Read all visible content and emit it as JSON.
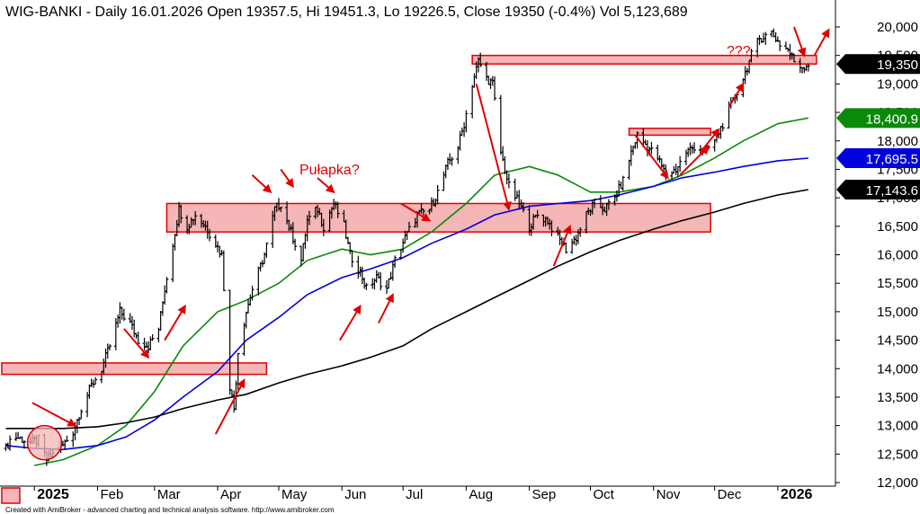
{
  "header": {
    "title": "WIG-BANKI - Daily 16.01.2026 Open 19357.5, Hi 19451.3, Lo 19226.5, Close 19350 (-0.4%) Vol 5,123,689"
  },
  "credit": "Created with AmiBroker - advanced charting and technical analysis software. http://www.amibroker.com",
  "annotations": {
    "trap_label": "Pułapka?",
    "question_label": "???"
  },
  "colors": {
    "price": "#000000",
    "zone_fill": "#f4b6b6",
    "zone_border": "#e00000",
    "arrow": "#e00000",
    "ma_green": "#0a8a0a",
    "ma_blue": "#0000dd",
    "ma_black": "#000000",
    "background": "#ffffff"
  },
  "chart_data": {
    "type": "line",
    "subtype": "ohlc-bars",
    "title": "WIG-BANKI - Daily 16.01.2026 Open 19357.5, Hi 19451.3, Lo 19226.5, Close 19350 (-0.4%) Vol 5,123,689",
    "ylim": [
      12000,
      20000
    ],
    "y_ticks": [
      12000,
      12500,
      13000,
      13500,
      14000,
      14500,
      15000,
      15500,
      16000,
      16500,
      17000,
      17500,
      18000,
      18500,
      19000,
      19500,
      20000
    ],
    "y_tick_labels": [
      "12,000",
      "12,500",
      "13,000",
      "13,500",
      "14,000",
      "14,500",
      "15,000",
      "15,500",
      "16,000",
      "16,500",
      "17,000",
      "17,500",
      "18,000",
      "18,500",
      "19,000",
      "19,500",
      "20,000"
    ],
    "grid": false,
    "x_labels": [
      {
        "label": "2025",
        "bold": true,
        "date": "2025-01-01"
      },
      {
        "label": "Feb",
        "date": "2025-02-01"
      },
      {
        "label": "Mar",
        "date": "2025-03-01"
      },
      {
        "label": "Apr",
        "date": "2025-04-01"
      },
      {
        "label": "May",
        "date": "2025-05-01"
      },
      {
        "label": "Jun",
        "date": "2025-06-01"
      },
      {
        "label": "Jul",
        "date": "2025-07-01"
      },
      {
        "label": "Aug",
        "date": "2025-08-01"
      },
      {
        "label": "Sep",
        "date": "2025-09-01"
      },
      {
        "label": "Oct",
        "date": "2025-10-01"
      },
      {
        "label": "Nov",
        "date": "2025-11-01"
      },
      {
        "label": "Dec",
        "date": "2025-12-01"
      },
      {
        "label": "2026",
        "bold": true,
        "date": "2026-01-01"
      }
    ],
    "last_values": [
      {
        "label": "19,350",
        "value": 19350,
        "series": "close",
        "bg": "#000000",
        "fg": "#ffffff"
      },
      {
        "label": "18,400.9",
        "value": 18400.9,
        "series": "ma_green",
        "bg": "#0a8a0a",
        "fg": "#ffffff"
      },
      {
        "label": "17,695.5",
        "value": 17695.5,
        "series": "ma_blue",
        "bg": "#0000dd",
        "fg": "#ffffff"
      },
      {
        "label": "17,143.6",
        "value": 17143.6,
        "series": "ma_black",
        "bg": "#000000",
        "fg": "#ffffff"
      }
    ],
    "price_anchors": [
      [
        "2024-12-18",
        12600
      ],
      [
        "2024-12-20",
        12750
      ],
      [
        "2024-12-23",
        12800
      ],
      [
        "2024-12-30",
        12700
      ],
      [
        "2025-01-03",
        12750
      ],
      [
        "2025-01-07",
        12400
      ],
      [
        "2025-01-10",
        12500
      ],
      [
        "2025-01-15",
        12650
      ],
      [
        "2025-01-20",
        12900
      ],
      [
        "2025-01-24",
        13300
      ],
      [
        "2025-01-29",
        13700
      ],
      [
        "2025-02-03",
        14000
      ],
      [
        "2025-02-07",
        14400
      ],
      [
        "2025-02-12",
        15000
      ],
      [
        "2025-02-17",
        14800
      ],
      [
        "2025-02-21",
        14500
      ],
      [
        "2025-02-26",
        14400
      ],
      [
        "2025-03-03",
        14700
      ],
      [
        "2025-03-06",
        15400
      ],
      [
        "2025-03-10",
        16200
      ],
      [
        "2025-03-13",
        16800
      ],
      [
        "2025-03-17",
        16500
      ],
      [
        "2025-03-21",
        16700
      ],
      [
        "2025-03-26",
        16500
      ],
      [
        "2025-03-31",
        16200
      ],
      [
        "2025-04-03",
        16000
      ],
      [
        "2025-04-07",
        13700
      ],
      [
        "2025-04-09",
        13300
      ],
      [
        "2025-04-11",
        14300
      ],
      [
        "2025-04-15",
        15000
      ],
      [
        "2025-04-18",
        15400
      ],
      [
        "2025-04-24",
        16000
      ],
      [
        "2025-04-29",
        16800
      ],
      [
        "2025-05-02",
        16900
      ],
      [
        "2025-05-07",
        16400
      ],
      [
        "2025-05-12",
        15900
      ],
      [
        "2025-05-15",
        16600
      ],
      [
        "2025-05-20",
        16800
      ],
      [
        "2025-05-23",
        16500
      ],
      [
        "2025-05-28",
        16900
      ],
      [
        "2025-06-02",
        16500
      ],
      [
        "2025-06-05",
        16000
      ],
      [
        "2025-06-10",
        15700
      ],
      [
        "2025-06-13",
        15400
      ],
      [
        "2025-06-18",
        15600
      ],
      [
        "2025-06-23",
        15400
      ],
      [
        "2025-06-27",
        15900
      ],
      [
        "2025-07-02",
        16300
      ],
      [
        "2025-07-08",
        16700
      ],
      [
        "2025-07-14",
        16800
      ],
      [
        "2025-07-18",
        17100
      ],
      [
        "2025-07-23",
        17600
      ],
      [
        "2025-07-28",
        17900
      ],
      [
        "2025-07-31",
        18300
      ],
      [
        "2025-08-04",
        19000
      ],
      [
        "2025-08-07",
        19400
      ],
      [
        "2025-08-11",
        19100
      ],
      [
        "2025-08-14",
        19000
      ],
      [
        "2025-08-18",
        17800
      ],
      [
        "2025-08-22",
        17200
      ],
      [
        "2025-08-27",
        16900
      ],
      [
        "2025-09-01",
        16500
      ],
      [
        "2025-09-05",
        16700
      ],
      [
        "2025-09-10",
        16600
      ],
      [
        "2025-09-15",
        16300
      ],
      [
        "2025-09-19",
        16100
      ],
      [
        "2025-09-24",
        16300
      ],
      [
        "2025-09-29",
        16700
      ],
      [
        "2025-10-03",
        16900
      ],
      [
        "2025-10-08",
        16800
      ],
      [
        "2025-10-13",
        17000
      ],
      [
        "2025-10-17",
        17300
      ],
      [
        "2025-10-21",
        17800
      ],
      [
        "2025-10-24",
        18100
      ],
      [
        "2025-10-29",
        17900
      ],
      [
        "2025-11-03",
        17700
      ],
      [
        "2025-11-07",
        17400
      ],
      [
        "2025-11-12",
        17500
      ],
      [
        "2025-11-17",
        17800
      ],
      [
        "2025-11-21",
        17900
      ],
      [
        "2025-11-26",
        17800
      ],
      [
        "2025-12-01",
        18000
      ],
      [
        "2025-12-05",
        18300
      ],
      [
        "2025-12-10",
        18700
      ],
      [
        "2025-12-15",
        19100
      ],
      [
        "2025-12-19",
        19500
      ],
      [
        "2025-12-23",
        19800
      ],
      [
        "2025-12-29",
        19900
      ],
      [
        "2026-01-02",
        19700
      ],
      [
        "2026-01-06",
        19600
      ],
      [
        "2026-01-09",
        19400
      ],
      [
        "2026-01-13",
        19300
      ],
      [
        "2026-01-16",
        19350
      ]
    ],
    "moving_averages": [
      {
        "name": "ma_green",
        "color": "#0a8a0a",
        "points": [
          [
            "2025-01-01",
            12300
          ],
          [
            "2025-01-15",
            12400
          ],
          [
            "2025-02-01",
            12650
          ],
          [
            "2025-02-15",
            13000
          ],
          [
            "2025-03-01",
            13600
          ],
          [
            "2025-03-15",
            14400
          ],
          [
            "2025-04-01",
            15000
          ],
          [
            "2025-04-15",
            15200
          ],
          [
            "2025-05-01",
            15500
          ],
          [
            "2025-05-15",
            15900
          ],
          [
            "2025-06-01",
            16100
          ],
          [
            "2025-06-15",
            16000
          ],
          [
            "2025-07-01",
            16100
          ],
          [
            "2025-07-15",
            16400
          ],
          [
            "2025-08-01",
            16900
          ],
          [
            "2025-08-15",
            17400
          ],
          [
            "2025-09-01",
            17550
          ],
          [
            "2025-09-15",
            17400
          ],
          [
            "2025-10-01",
            17100
          ],
          [
            "2025-10-15",
            17100
          ],
          [
            "2025-11-01",
            17200
          ],
          [
            "2025-11-15",
            17400
          ],
          [
            "2025-12-01",
            17700
          ],
          [
            "2025-12-15",
            18000
          ],
          [
            "2026-01-01",
            18300
          ],
          [
            "2026-01-16",
            18400.9
          ]
        ]
      },
      {
        "name": "ma_blue",
        "color": "#0000dd",
        "points": [
          [
            "2024-12-18",
            12650
          ],
          [
            "2025-01-01",
            12600
          ],
          [
            "2025-01-15",
            12580
          ],
          [
            "2025-02-01",
            12650
          ],
          [
            "2025-02-15",
            12800
          ],
          [
            "2025-03-01",
            13100
          ],
          [
            "2025-03-15",
            13500
          ],
          [
            "2025-04-01",
            13950
          ],
          [
            "2025-04-15",
            14500
          ],
          [
            "2025-05-01",
            14900
          ],
          [
            "2025-05-15",
            15300
          ],
          [
            "2025-06-01",
            15600
          ],
          [
            "2025-06-15",
            15750
          ],
          [
            "2025-07-01",
            15950
          ],
          [
            "2025-07-15",
            16200
          ],
          [
            "2025-08-01",
            16450
          ],
          [
            "2025-08-15",
            16700
          ],
          [
            "2025-09-01",
            16850
          ],
          [
            "2025-09-15",
            16900
          ],
          [
            "2025-10-01",
            16950
          ],
          [
            "2025-10-15",
            17050
          ],
          [
            "2025-11-01",
            17200
          ],
          [
            "2025-11-15",
            17350
          ],
          [
            "2025-12-01",
            17450
          ],
          [
            "2025-12-15",
            17550
          ],
          [
            "2026-01-01",
            17650
          ],
          [
            "2026-01-16",
            17695.5
          ]
        ]
      },
      {
        "name": "ma_black",
        "color": "#000000",
        "points": [
          [
            "2024-12-18",
            12950
          ],
          [
            "2025-01-15",
            12950
          ],
          [
            "2025-02-01",
            12980
          ],
          [
            "2025-02-15",
            13050
          ],
          [
            "2025-03-01",
            13150
          ],
          [
            "2025-03-15",
            13300
          ],
          [
            "2025-04-01",
            13450
          ],
          [
            "2025-04-15",
            13550
          ],
          [
            "2025-05-01",
            13750
          ],
          [
            "2025-05-15",
            13900
          ],
          [
            "2025-06-01",
            14050
          ],
          [
            "2025-06-15",
            14200
          ],
          [
            "2025-07-01",
            14400
          ],
          [
            "2025-07-15",
            14700
          ],
          [
            "2025-08-01",
            15000
          ],
          [
            "2025-08-15",
            15250
          ],
          [
            "2025-09-01",
            15550
          ],
          [
            "2025-09-15",
            15800
          ],
          [
            "2025-10-01",
            16050
          ],
          [
            "2025-10-15",
            16250
          ],
          [
            "2025-11-01",
            16450
          ],
          [
            "2025-11-15",
            16600
          ],
          [
            "2025-12-01",
            16750
          ],
          [
            "2025-12-15",
            16900
          ],
          [
            "2026-01-01",
            17050
          ],
          [
            "2026-01-16",
            17143.6
          ]
        ]
      }
    ],
    "zones": [
      {
        "name": "zone-14000",
        "from": "2024-12-16",
        "to": "2025-04-25",
        "low": 13900,
        "high": 14100
      },
      {
        "name": "zone-16700",
        "from": "2025-03-07",
        "to": "2025-11-29",
        "low": 16400,
        "high": 16900
      },
      {
        "name": "zone-18200",
        "from": "2025-10-20",
        "to": "2025-11-29",
        "low": 18100,
        "high": 18220
      },
      {
        "name": "zone-19500",
        "from": "2025-08-04",
        "to": "2026-01-20",
        "low": 19350,
        "high": 19500
      }
    ],
    "circle_marker": {
      "date": "2025-01-06",
      "value": 12700,
      "radius_value": 300
    },
    "arrows": [
      {
        "from": [
          "2024-12-31",
          13400
        ],
        "to": [
          "2025-01-21",
          13000
        ]
      },
      {
        "from": [
          "2025-02-14",
          14700
        ],
        "to": [
          "2025-02-26",
          14200
        ]
      },
      {
        "from": [
          "2025-03-06",
          14500
        ],
        "to": [
          "2025-03-16",
          15100
        ]
      },
      {
        "from": [
          "2025-03-31",
          12850
        ],
        "to": [
          "2025-04-14",
          13800
        ]
      },
      {
        "from": [
          "2025-04-18",
          17400
        ],
        "to": [
          "2025-04-27",
          17100
        ]
      },
      {
        "from": [
          "2025-05-02",
          17500
        ],
        "to": [
          "2025-05-08",
          17200
        ]
      },
      {
        "from": [
          "2025-05-20",
          17350
        ],
        "to": [
          "2025-05-28",
          17100
        ]
      },
      {
        "from": [
          "2025-05-31",
          14500
        ],
        "to": [
          "2025-06-10",
          15100
        ]
      },
      {
        "from": [
          "2025-06-19",
          14800
        ],
        "to": [
          "2025-06-26",
          15300
        ]
      },
      {
        "from": [
          "2025-06-30",
          16900
        ],
        "to": [
          "2025-07-14",
          16600
        ]
      },
      {
        "from": [
          "2025-08-06",
          19000
        ],
        "to": [
          "2025-08-22",
          16800
        ]
      },
      {
        "from": [
          "2025-09-13",
          15800
        ],
        "to": [
          "2025-09-21",
          16500
        ]
      },
      {
        "from": [
          "2025-10-23",
          18100
        ],
        "to": [
          "2025-11-08",
          17350
        ]
      },
      {
        "from": [
          "2025-11-14",
          17400
        ],
        "to": [
          "2025-11-28",
          17900
        ]
      },
      {
        "from": [
          "2025-11-24",
          17800
        ],
        "to": [
          "2025-12-03",
          18200
        ]
      },
      {
        "from": [
          "2025-12-08",
          18600
        ],
        "to": [
          "2025-12-15",
          19000
        ]
      },
      {
        "from": [
          "2026-01-09",
          20000
        ],
        "to": [
          "2026-01-14",
          19500
        ]
      },
      {
        "from": [
          "2026-01-19",
          19500
        ],
        "to": [
          "2026-01-26",
          19950
        ]
      }
    ]
  }
}
